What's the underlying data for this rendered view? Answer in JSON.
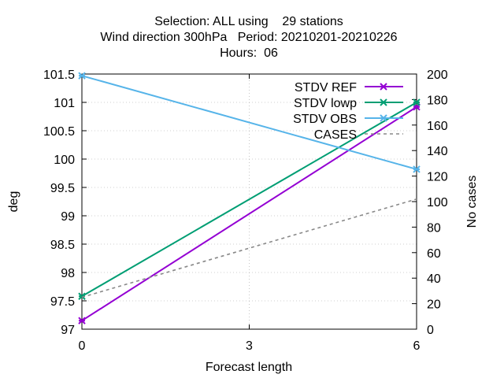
{
  "chart_data": {
    "type": "line",
    "title_lines": [
      "Selection: ALL using    29 stations",
      "Wind direction 300hPa   Period: 20210201-20210226",
      "Hours:  06"
    ],
    "xlabel": "Forecast length",
    "ylabel": "deg",
    "y2label": "No cases",
    "x": [
      0,
      6
    ],
    "xlim": [
      0,
      6
    ],
    "xticks": [
      0,
      3,
      6
    ],
    "ylim": [
      97,
      101.5
    ],
    "yticks": [
      97,
      97.5,
      98,
      98.5,
      99,
      99.5,
      100,
      100.5,
      101,
      101.5
    ],
    "y2lim": [
      0,
      200
    ],
    "y2ticks": [
      0,
      20,
      40,
      60,
      80,
      100,
      120,
      140,
      160,
      180,
      200
    ],
    "grid": true,
    "legend_position": "top-right",
    "series": [
      {
        "name": "STDV REF",
        "axis": "y",
        "values": [
          97.15,
          100.92
        ],
        "color": "#9400d3",
        "style": "line-marker"
      },
      {
        "name": "STDV lowp",
        "axis": "y",
        "values": [
          97.58,
          101.0
        ],
        "color": "#009e73",
        "style": "line-marker"
      },
      {
        "name": "STDV OBS",
        "axis": "y",
        "values": [
          101.47,
          99.82
        ],
        "color": "#56b4e9",
        "style": "line-marker"
      },
      {
        "name": "CASES",
        "axis": "y2",
        "values": [
          25,
          102
        ],
        "color": "#888888",
        "style": "dashed"
      }
    ]
  }
}
